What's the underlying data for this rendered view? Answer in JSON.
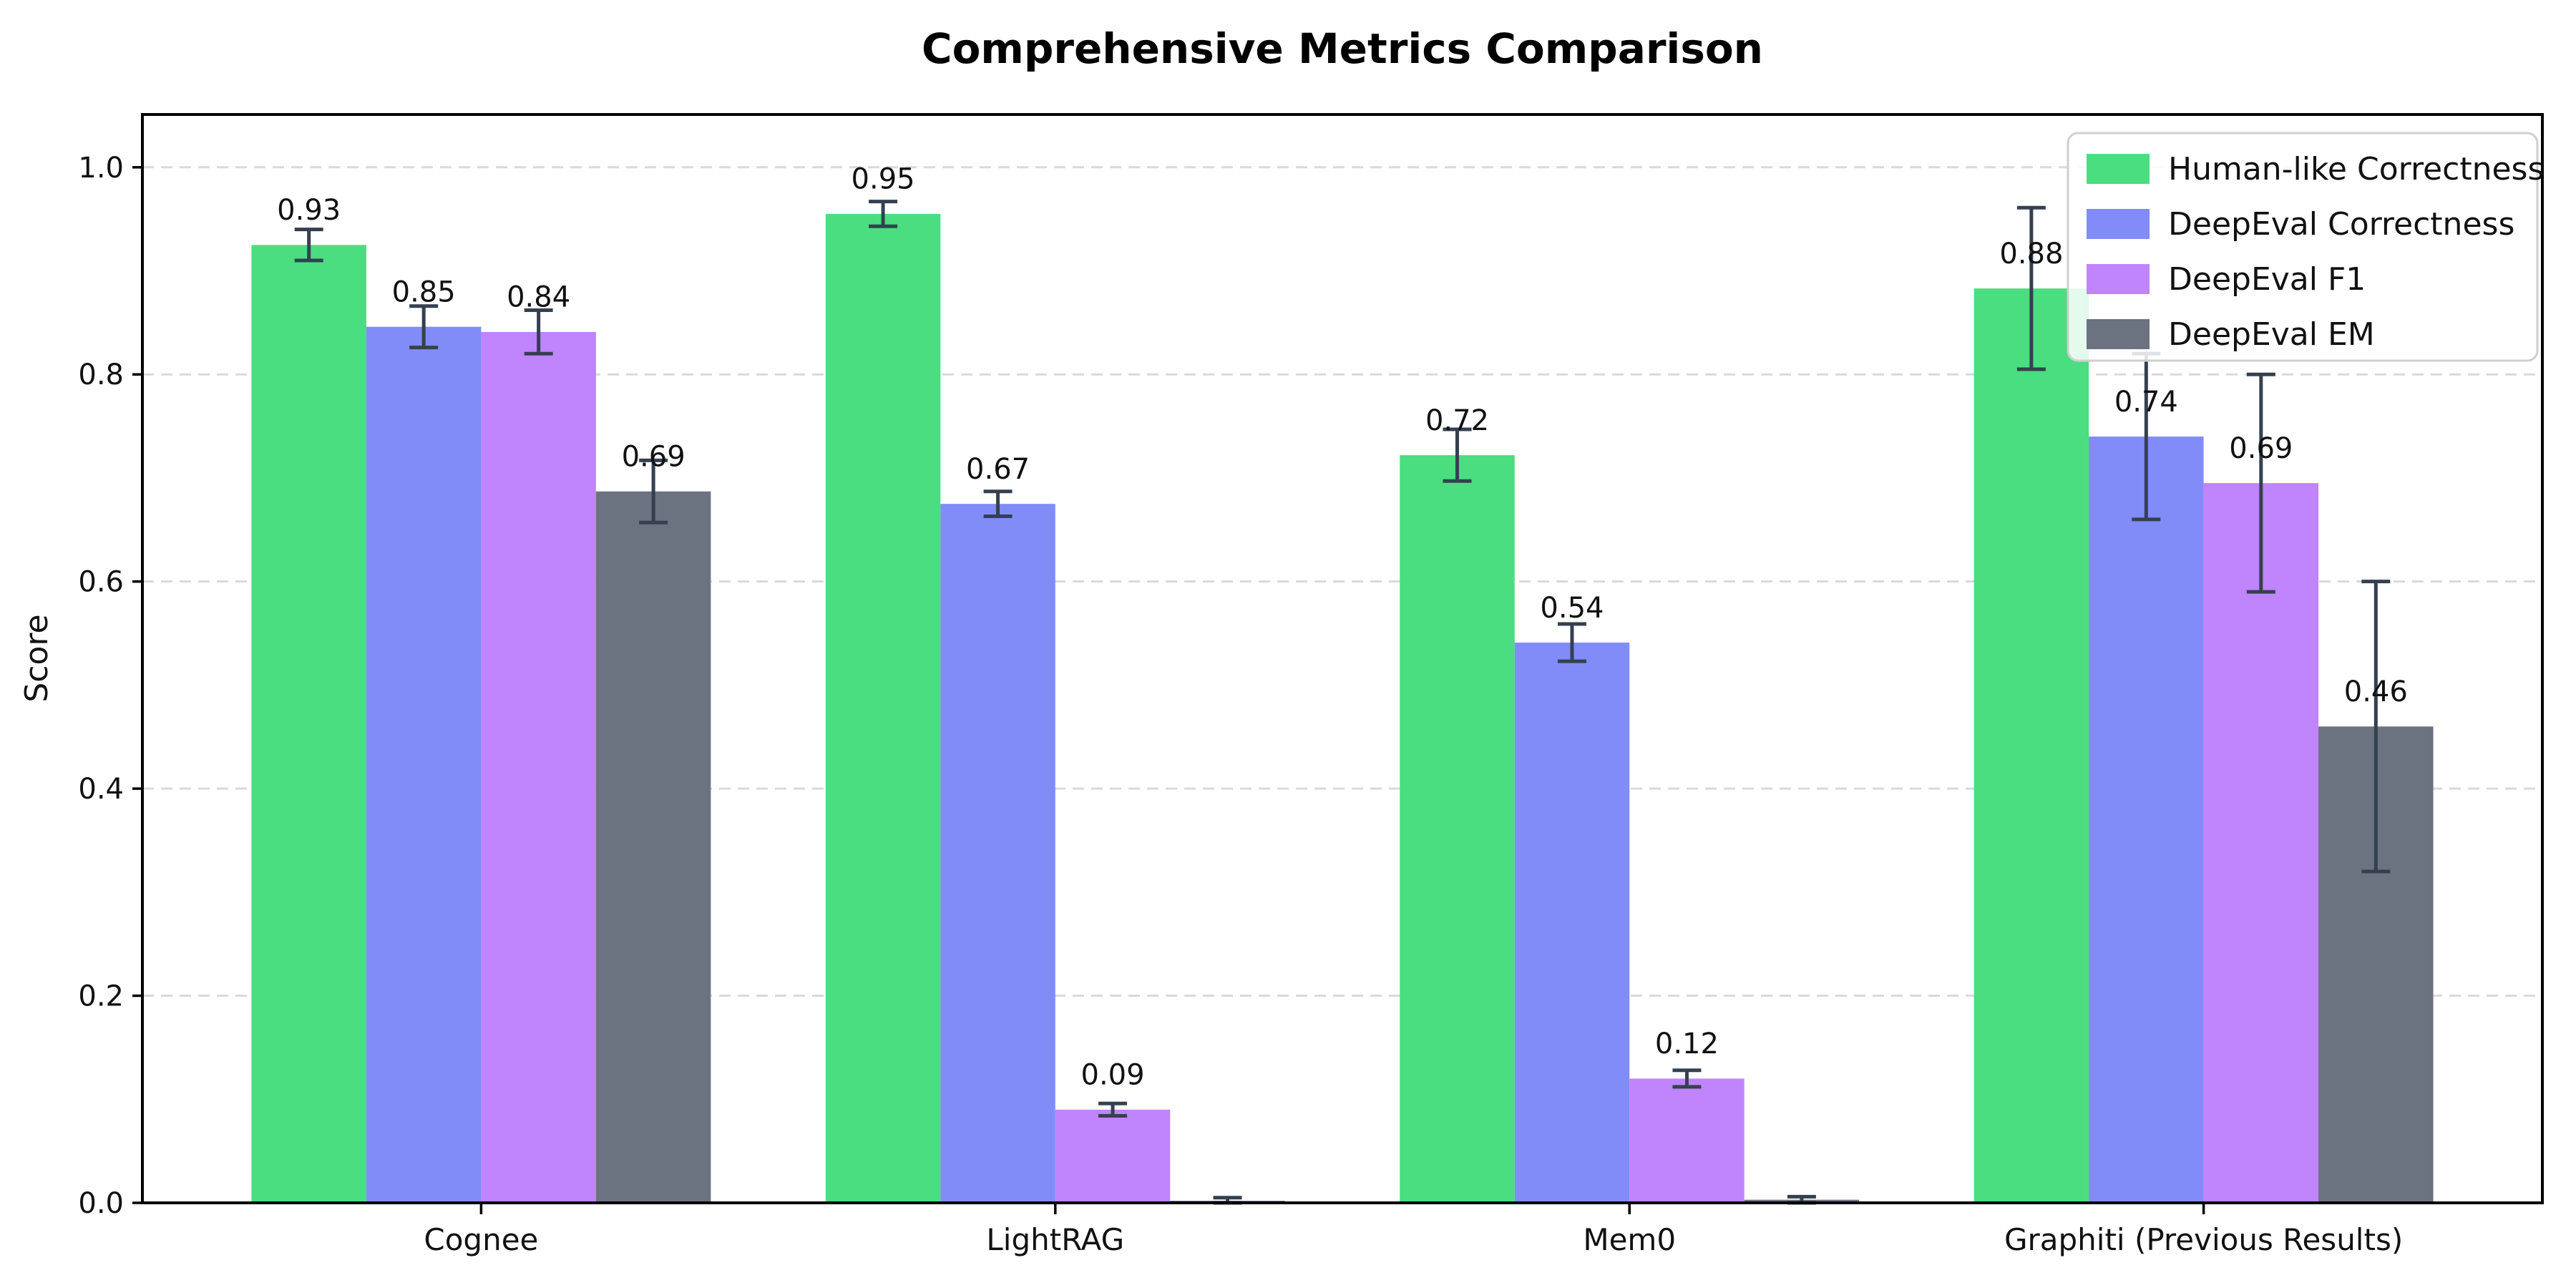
{
  "chart_data": {
    "type": "bar",
    "title": "Comprehensive Metrics Comparison",
    "ylabel": "Score",
    "xlabel": "",
    "categories": [
      "Cognee",
      "LightRAG",
      "Mem0",
      "Graphiti (Previous Results)"
    ],
    "series": [
      {
        "name": "Human-like Correctness",
        "color": "#4ade80",
        "values": [
          0.925,
          0.955,
          0.722,
          0.883
        ],
        "errors": [
          0.015,
          0.012,
          0.025,
          0.078
        ],
        "labels": [
          "0.93",
          "0.95",
          "0.72",
          "0.88"
        ]
      },
      {
        "name": "DeepEval Correctness",
        "color": "#818cf8",
        "values": [
          0.846,
          0.675,
          0.541,
          0.74
        ],
        "errors": [
          0.02,
          0.012,
          0.018,
          0.08
        ],
        "labels": [
          "0.85",
          "0.67",
          "0.54",
          "0.74"
        ]
      },
      {
        "name": "DeepEval F1",
        "color": "#c084fc",
        "values": [
          0.841,
          0.09,
          0.12,
          0.695
        ],
        "errors": [
          0.021,
          0.006,
          0.008,
          0.105
        ],
        "labels": [
          "0.84",
          "0.09",
          "0.12",
          "0.69"
        ]
      },
      {
        "name": "DeepEval EM",
        "color": "#6b7280",
        "values": [
          0.687,
          0.002,
          0.003,
          0.46
        ],
        "errors": [
          0.03,
          0.003,
          0.003,
          0.14
        ],
        "labels": [
          "0.69",
          null,
          null,
          "0.46"
        ]
      }
    ],
    "yticks": [
      "0.0",
      "0.2",
      "0.4",
      "0.6",
      "0.8",
      "1.0"
    ],
    "ylim": [
      0.0,
      1.05
    ],
    "grid": true,
    "grid_style": "dashed",
    "legend_position": "upper right",
    "colors": {
      "error_bar": "#35404f",
      "grid_line": "#d9d9d9",
      "spine": "#000000",
      "value_label": "#111111",
      "legend_border": "#cfcfcf",
      "legend_background": "#ffffff"
    }
  }
}
